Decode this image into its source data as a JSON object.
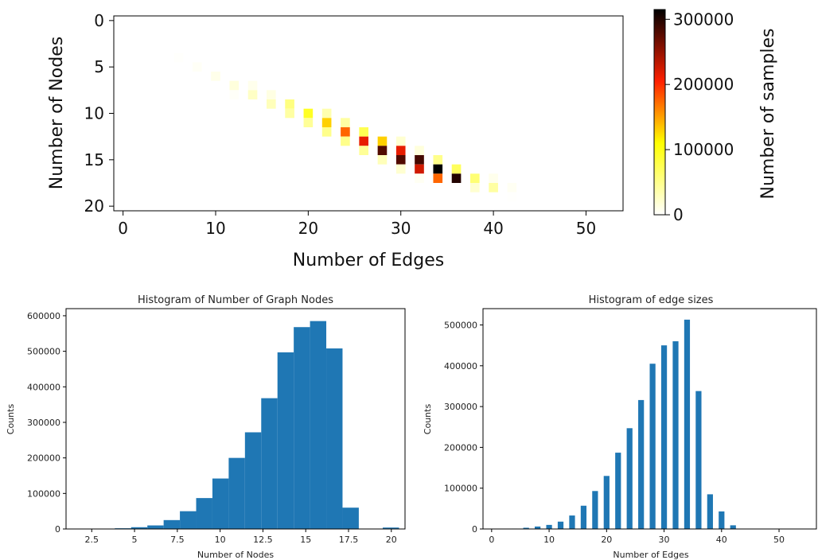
{
  "chart_data": [
    {
      "type": "heatmap",
      "title": "",
      "xlabel": "Number of Edges",
      "ylabel": "Number of Nodes",
      "xlim": [
        -1,
        54
      ],
      "ylim": [
        20.5,
        -0.5
      ],
      "xticks": [
        0,
        10,
        20,
        30,
        40,
        50
      ],
      "yticks": [
        0,
        5,
        10,
        15,
        20
      ],
      "colorbar": {
        "label": "Number of samples",
        "min": 0,
        "max": 315000,
        "ticks": [
          0,
          100000,
          200000,
          300000
        ],
        "colormap": "hot_r"
      },
      "cells": [
        {
          "edges": 6,
          "nodes": 4,
          "value": 1500
        },
        {
          "edges": 8,
          "nodes": 5,
          "value": 4000
        },
        {
          "edges": 10,
          "nodes": 6,
          "value": 9000
        },
        {
          "edges": 12,
          "nodes": 7,
          "value": 15000
        },
        {
          "edges": 12,
          "nodes": 8,
          "value": 3000
        },
        {
          "edges": 14,
          "nodes": 7,
          "value": 8000
        },
        {
          "edges": 14,
          "nodes": 8,
          "value": 25000
        },
        {
          "edges": 16,
          "nodes": 8,
          "value": 12000
        },
        {
          "edges": 16,
          "nodes": 9,
          "value": 30000
        },
        {
          "edges": 18,
          "nodes": 9,
          "value": 55000
        },
        {
          "edges": 18,
          "nodes": 10,
          "value": 40000
        },
        {
          "edges": 20,
          "nodes": 10,
          "value": 95000
        },
        {
          "edges": 20,
          "nodes": 11,
          "value": 45000
        },
        {
          "edges": 22,
          "nodes": 10,
          "value": 35000
        },
        {
          "edges": 22,
          "nodes": 11,
          "value": 130000
        },
        {
          "edges": 22,
          "nodes": 12,
          "value": 50000
        },
        {
          "edges": 24,
          "nodes": 11,
          "value": 40000
        },
        {
          "edges": 24,
          "nodes": 12,
          "value": 175000
        },
        {
          "edges": 24,
          "nodes": 13,
          "value": 50000
        },
        {
          "edges": 26,
          "nodes": 12,
          "value": 75000
        },
        {
          "edges": 26,
          "nodes": 13,
          "value": 215000
        },
        {
          "edges": 26,
          "nodes": 14,
          "value": 45000
        },
        {
          "edges": 28,
          "nodes": 13,
          "value": 130000
        },
        {
          "edges": 28,
          "nodes": 14,
          "value": 280000
        },
        {
          "edges": 28,
          "nodes": 15,
          "value": 30000
        },
        {
          "edges": 30,
          "nodes": 13,
          "value": 20000
        },
        {
          "edges": 30,
          "nodes": 14,
          "value": 215000
        },
        {
          "edges": 30,
          "nodes": 15,
          "value": 280000
        },
        {
          "edges": 30,
          "nodes": 16,
          "value": 20000
        },
        {
          "edges": 32,
          "nodes": 14,
          "value": 15000
        },
        {
          "edges": 32,
          "nodes": 15,
          "value": 285000
        },
        {
          "edges": 32,
          "nodes": 16,
          "value": 225000
        },
        {
          "edges": 32,
          "nodes": 17,
          "value": 5000
        },
        {
          "edges": 34,
          "nodes": 15,
          "value": 50000
        },
        {
          "edges": 34,
          "nodes": 16,
          "value": 315000
        },
        {
          "edges": 34,
          "nodes": 17,
          "value": 175000
        },
        {
          "edges": 36,
          "nodes": 16,
          "value": 70000
        },
        {
          "edges": 36,
          "nodes": 17,
          "value": 300000
        },
        {
          "edges": 38,
          "nodes": 17,
          "value": 60000
        },
        {
          "edges": 38,
          "nodes": 18,
          "value": 20000
        },
        {
          "edges": 40,
          "nodes": 17,
          "value": 8000
        },
        {
          "edges": 40,
          "nodes": 18,
          "value": 40000
        },
        {
          "edges": 42,
          "nodes": 18,
          "value": 5000
        },
        {
          "edges": 42,
          "nodes": 19,
          "value": 1000
        }
      ]
    },
    {
      "type": "bar",
      "title": "Histogram of Number of Graph Nodes",
      "xlabel": "Number of Nodes",
      "ylabel": "Counts",
      "xlim": [
        1.0,
        20.8
      ],
      "ylim": [
        0,
        620000
      ],
      "xticks": [
        2.5,
        5.0,
        7.5,
        10.0,
        12.5,
        15.0,
        17.5,
        20.0
      ],
      "yticks": [
        0,
        100000,
        200000,
        300000,
        400000,
        500000,
        600000
      ],
      "color": "#1f77b4",
      "bins": [
        {
          "x0": 3.85,
          "x1": 4.8,
          "value": 2000
        },
        {
          "x0": 4.8,
          "x1": 5.75,
          "value": 5000
        },
        {
          "x0": 5.75,
          "x1": 6.7,
          "value": 10000
        },
        {
          "x0": 6.7,
          "x1": 7.65,
          "value": 25000
        },
        {
          "x0": 7.65,
          "x1": 8.6,
          "value": 50000
        },
        {
          "x0": 8.6,
          "x1": 9.55,
          "value": 87000
        },
        {
          "x0": 9.55,
          "x1": 10.5,
          "value": 142000
        },
        {
          "x0": 10.5,
          "x1": 11.45,
          "value": 200000
        },
        {
          "x0": 11.45,
          "x1": 12.4,
          "value": 272000
        },
        {
          "x0": 12.4,
          "x1": 13.35,
          "value": 368000
        },
        {
          "x0": 13.35,
          "x1": 14.3,
          "value": 497000
        },
        {
          "x0": 14.3,
          "x1": 15.25,
          "value": 568000
        },
        {
          "x0": 15.25,
          "x1": 16.2,
          "value": 585000
        },
        {
          "x0": 16.2,
          "x1": 17.15,
          "value": 508000
        },
        {
          "x0": 17.15,
          "x1": 18.1,
          "value": 60000
        },
        {
          "x0": 19.5,
          "x1": 20.45,
          "value": 4000
        }
      ]
    },
    {
      "type": "bar",
      "title": "Histogram of edge sizes",
      "xlabel": "Number of Edges",
      "ylabel": "Counts",
      "xlim": [
        -1.5,
        56.5
      ],
      "ylim": [
        0,
        540000
      ],
      "xticks": [
        0,
        10,
        20,
        30,
        40,
        50
      ],
      "yticks": [
        0,
        100000,
        200000,
        300000,
        400000,
        500000
      ],
      "color": "#1f77b4",
      "bar_width": 1.0,
      "x": [
        4,
        6,
        8,
        10,
        12,
        14,
        16,
        18,
        20,
        22,
        24,
        26,
        28,
        30,
        32,
        34,
        36,
        38,
        40,
        42
      ],
      "values": [
        1000,
        3000,
        6000,
        10000,
        18000,
        33000,
        57000,
        93000,
        130000,
        187000,
        247000,
        316000,
        405000,
        450000,
        460000,
        513000,
        338000,
        85000,
        43000,
        9000
      ]
    }
  ]
}
